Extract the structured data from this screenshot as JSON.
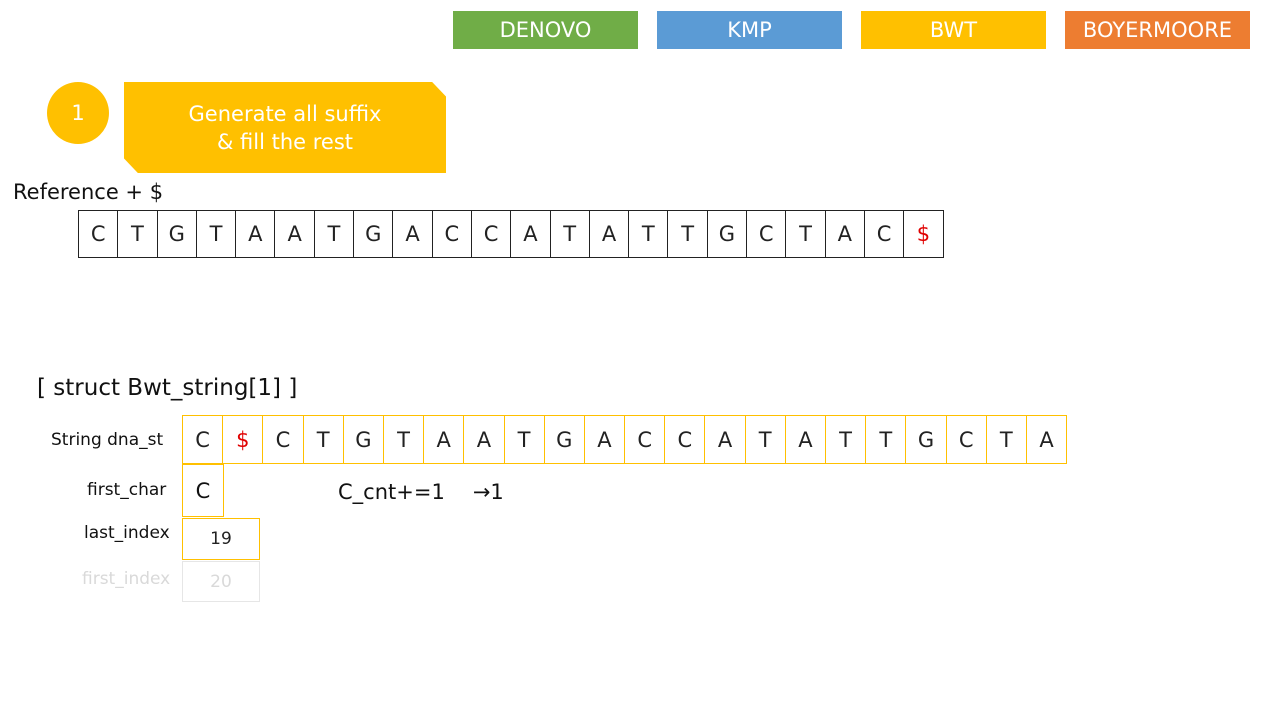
{
  "tabs": [
    {
      "label": "DENOVO",
      "color": "#70ad47"
    },
    {
      "label": "KMP",
      "color": "#5b9bd5"
    },
    {
      "label": "BWT",
      "color": "#ffc000"
    },
    {
      "label": "BOYERMOORE",
      "color": "#ed7d31"
    }
  ],
  "step": {
    "number": "1",
    "line1": "Generate all suffix",
    "line2": "& fill the rest"
  },
  "reference": {
    "label": "Reference + $",
    "chars": [
      "C",
      "T",
      "G",
      "T",
      "A",
      "A",
      "T",
      "G",
      "A",
      "C",
      "C",
      "A",
      "T",
      "A",
      "T",
      "T",
      "G",
      "C",
      "T",
      "A",
      "C",
      "$"
    ]
  },
  "struct": {
    "title": "[ struct Bwt_string[1] ]",
    "dna_label": "String dna_st",
    "dna_chars": [
      "C",
      "$",
      "C",
      "T",
      "G",
      "T",
      "A",
      "A",
      "T",
      "G",
      "A",
      "C",
      "C",
      "A",
      "T",
      "A",
      "T",
      "T",
      "G",
      "C",
      "T",
      "A"
    ],
    "first_char_label": "first_char",
    "first_char_value": "C",
    "last_index_label": "last_index",
    "last_index_value": "19",
    "first_index_label": "first_index",
    "first_index_value": "20"
  },
  "counter_text": "C_cnt+=1",
  "counter_arrow": "→",
  "counter_result": "1",
  "colors": {
    "accent": "#ffc000",
    "special_char": "#e00000",
    "faded": "#d9d9d9"
  }
}
